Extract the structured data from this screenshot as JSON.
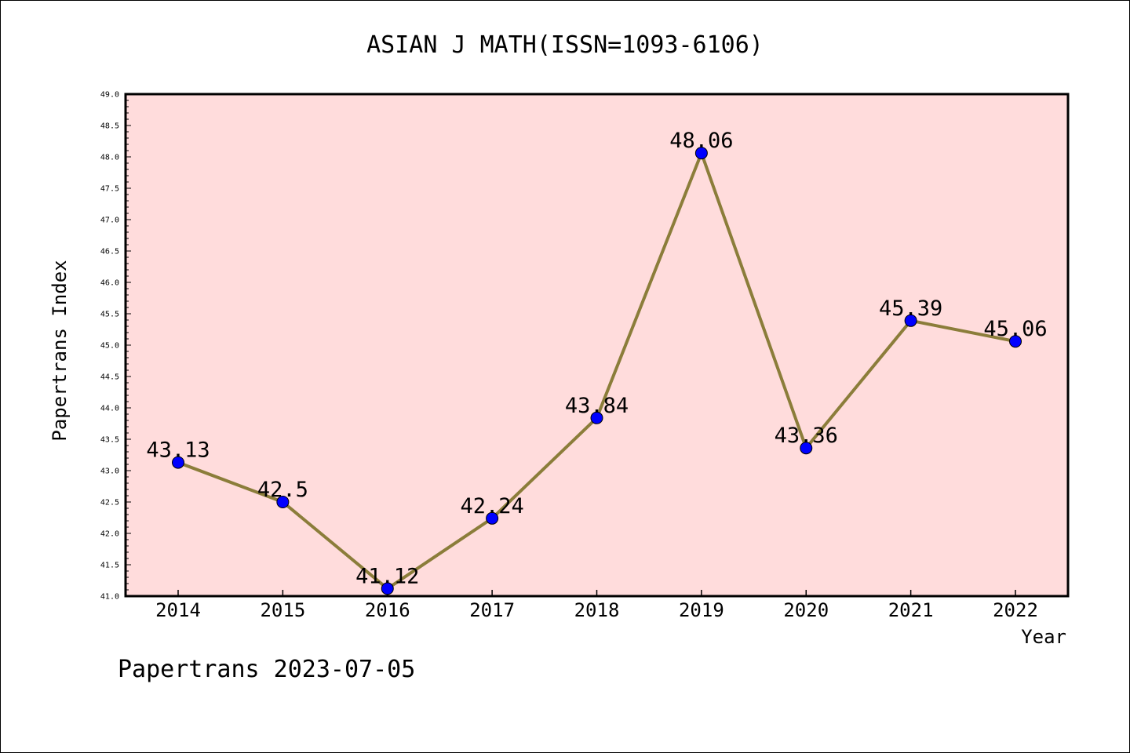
{
  "chart_data": {
    "type": "line",
    "title": "ASIAN J MATH(ISSN=1093-6106)",
    "xlabel": "Year",
    "ylabel": "Papertrans Index",
    "categories": [
      "2014",
      "2015",
      "2016",
      "2017",
      "2018",
      "2019",
      "2020",
      "2021",
      "2022"
    ],
    "series": [
      {
        "values": [
          43.13,
          42.5,
          41.12,
          42.24,
          43.84,
          48.06,
          43.36,
          45.39,
          45.06
        ],
        "labels": [
          "43.13",
          "42.5",
          "41.12",
          "42.24",
          "43.84",
          "48.06",
          "43.36",
          "45.39",
          "45.06"
        ]
      }
    ],
    "ylim": [
      41.0,
      49.0
    ],
    "yticks": [
      "41.0",
      "41.5",
      "42.0",
      "42.5",
      "43.0",
      "43.5",
      "44.0",
      "44.5",
      "45.0",
      "45.5",
      "46.0",
      "46.5",
      "47.0",
      "47.5",
      "48.0",
      "48.5",
      "49.0"
    ],
    "grid": false,
    "colors": {
      "plot_background": "#ffdcdc",
      "line": "#8b7d3a",
      "marker": "#0000ff"
    }
  },
  "footer": "Papertrans 2023-07-05"
}
